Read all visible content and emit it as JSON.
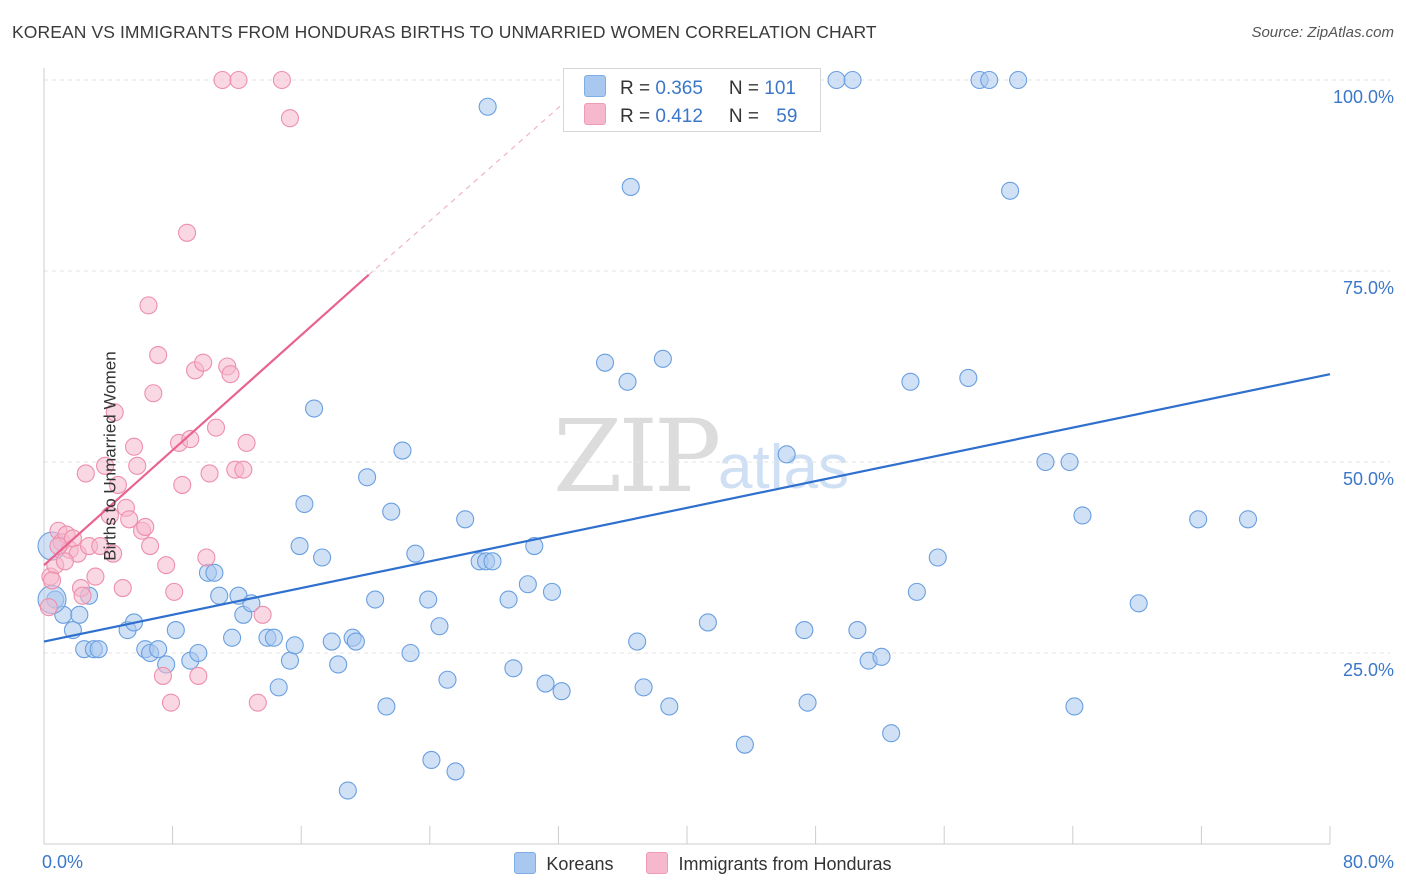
{
  "title": "KOREAN VS IMMIGRANTS FROM HONDURAS BIRTHS TO UNMARRIED WOMEN CORRELATION CHART",
  "source": "Source: ZipAtlas.com",
  "watermark_zip": "ZIP",
  "watermark_atlas": "atlas",
  "legend": {
    "rows": [
      {
        "r_label": "R = ",
        "r_value": "0.365",
        "n_label": "N = ",
        "n_value": "101",
        "color": "#a9c8ef"
      },
      {
        "r_label": "R = ",
        "r_value": "0.412",
        "n_label": "N = ",
        "n_value": "59",
        "color": "#f6b8cc"
      }
    ]
  },
  "bottom_legend": {
    "series_1": "Koreans",
    "series_2": "Immigrants from Honduras"
  },
  "chart_data": {
    "type": "scatter",
    "title": "KOREAN VS IMMIGRANTS FROM HONDURAS BIRTHS TO UNMARRIED WOMEN CORRELATION CHART",
    "xlabel": "",
    "ylabel": "Births to Unmarried Women",
    "xlim": [
      0,
      80
    ],
    "ylim": [
      0,
      100
    ],
    "x_tick_labels": [
      "0.0%",
      "80.0%"
    ],
    "y_tick_labels": [
      "25.0%",
      "50.0%",
      "75.0%",
      "100.0%"
    ],
    "y_ticks": [
      25,
      50,
      75,
      100
    ],
    "grid": true,
    "series": [
      {
        "name": "Koreans",
        "color": "#a9c8ef",
        "edge": "#6a9fe0",
        "trend": {
          "x": [
            0,
            80
          ],
          "y": [
            26.5,
            61.5
          ],
          "color": "#2f6fcd"
        },
        "points": [
          [
            0.5,
            39
          ],
          [
            0.7,
            32
          ],
          [
            1.2,
            30
          ],
          [
            1.8,
            28
          ],
          [
            2.2,
            30
          ],
          [
            2.5,
            25.5
          ],
          [
            2.8,
            32.5
          ],
          [
            3.1,
            25.5
          ],
          [
            3.4,
            25.5
          ],
          [
            5.2,
            28
          ],
          [
            5.6,
            29
          ],
          [
            6.3,
            25.5
          ],
          [
            6.6,
            25
          ],
          [
            7.1,
            25.5
          ],
          [
            7.6,
            23.5
          ],
          [
            8.2,
            28
          ],
          [
            9.1,
            24
          ],
          [
            9.6,
            25
          ],
          [
            10.2,
            35.5
          ],
          [
            10.6,
            35.5
          ],
          [
            10.9,
            32.5
          ],
          [
            11.7,
            27
          ],
          [
            12.1,
            32.5
          ],
          [
            12.4,
            30
          ],
          [
            12.9,
            31.5
          ],
          [
            13.9,
            27
          ],
          [
            14.3,
            27
          ],
          [
            14.6,
            20.5
          ],
          [
            15.3,
            24
          ],
          [
            15.6,
            26
          ],
          [
            15.9,
            39
          ],
          [
            16.2,
            44.5
          ],
          [
            16.8,
            57
          ],
          [
            17.3,
            37.5
          ],
          [
            17.9,
            26.5
          ],
          [
            18.3,
            23.5
          ],
          [
            18.9,
            7
          ],
          [
            19.2,
            27
          ],
          [
            19.4,
            26.5
          ],
          [
            20.1,
            48
          ],
          [
            20.6,
            32
          ],
          [
            21.3,
            18
          ],
          [
            21.6,
            43.5
          ],
          [
            22.3,
            51.5
          ],
          [
            22.8,
            25
          ],
          [
            23.1,
            38
          ],
          [
            23.9,
            32
          ],
          [
            24.1,
            11
          ],
          [
            24.6,
            28.5
          ],
          [
            25.1,
            21.5
          ],
          [
            25.6,
            9.5
          ],
          [
            26.2,
            42.5
          ],
          [
            27.1,
            37
          ],
          [
            27.5,
            37
          ],
          [
            27.6,
            96.5
          ],
          [
            27.9,
            37
          ],
          [
            28.9,
            32
          ],
          [
            29.2,
            23
          ],
          [
            30.1,
            34
          ],
          [
            30.5,
            39
          ],
          [
            31.2,
            21
          ],
          [
            31.6,
            33
          ],
          [
            32.2,
            20
          ],
          [
            33.2,
            100
          ],
          [
            33.5,
            100
          ],
          [
            34.9,
            63
          ],
          [
            36.3,
            60.5
          ],
          [
            36.5,
            86
          ],
          [
            36.9,
            26.5
          ],
          [
            37.3,
            20.5
          ],
          [
            38.5,
            63.5
          ],
          [
            38.9,
            18
          ],
          [
            40.3,
            100
          ],
          [
            40.4,
            100
          ],
          [
            41.3,
            29
          ],
          [
            43.6,
            13
          ],
          [
            46.2,
            51
          ],
          [
            47.3,
            28
          ],
          [
            47.5,
            18.5
          ],
          [
            49.3,
            100
          ],
          [
            50.3,
            100
          ],
          [
            50.6,
            28
          ],
          [
            51.3,
            24
          ],
          [
            52.1,
            24.5
          ],
          [
            52.7,
            14.5
          ],
          [
            53.9,
            60.5
          ],
          [
            54.3,
            33
          ],
          [
            55.6,
            37.5
          ],
          [
            57.5,
            61
          ],
          [
            58.2,
            100
          ],
          [
            58.8,
            100
          ],
          [
            60.1,
            85.5
          ],
          [
            60.6,
            100
          ],
          [
            62.3,
            50
          ],
          [
            63.8,
            50
          ],
          [
            64.1,
            18
          ],
          [
            64.6,
            43
          ],
          [
            68.1,
            31.5
          ],
          [
            71.8,
            42.5
          ],
          [
            74.9,
            42.5
          ],
          [
            0.5,
            32
          ]
        ]
      },
      {
        "name": "Immigrants from Honduras",
        "color": "#f6b8cc",
        "edge": "#ee8fac",
        "trend": {
          "x": [
            0,
            20.2
          ],
          "y": [
            36.5,
            74.5
          ],
          "dash_to_x": 34.5,
          "dash_to_y": 101,
          "color": "#e8638f"
        },
        "points": [
          [
            0.3,
            31
          ],
          [
            0.4,
            35
          ],
          [
            0.7,
            36.5
          ],
          [
            0.9,
            41
          ],
          [
            1.1,
            39.5
          ],
          [
            1.4,
            40.5
          ],
          [
            1.6,
            38.5
          ],
          [
            1.8,
            40
          ],
          [
            2.1,
            38
          ],
          [
            2.3,
            33.5
          ],
          [
            2.4,
            32.5
          ],
          [
            2.6,
            48.5
          ],
          [
            2.8,
            39
          ],
          [
            3.2,
            35
          ],
          [
            3.5,
            39
          ],
          [
            3.8,
            49.5
          ],
          [
            4.1,
            43
          ],
          [
            4.3,
            38
          ],
          [
            4.4,
            56.5
          ],
          [
            4.6,
            47
          ],
          [
            4.9,
            33.5
          ],
          [
            5.1,
            44
          ],
          [
            5.3,
            42.5
          ],
          [
            5.6,
            52
          ],
          [
            5.8,
            49.5
          ],
          [
            6.1,
            41
          ],
          [
            6.3,
            41.5
          ],
          [
            6.5,
            70.5
          ],
          [
            6.6,
            39
          ],
          [
            6.8,
            59
          ],
          [
            7.1,
            64
          ],
          [
            7.4,
            22
          ],
          [
            7.6,
            36.5
          ],
          [
            7.9,
            18.5
          ],
          [
            8.1,
            33
          ],
          [
            8.4,
            52.5
          ],
          [
            8.6,
            47
          ],
          [
            8.9,
            80
          ],
          [
            9.1,
            53
          ],
          [
            9.4,
            62
          ],
          [
            9.6,
            22
          ],
          [
            9.9,
            63
          ],
          [
            10.1,
            37.5
          ],
          [
            10.3,
            48.5
          ],
          [
            10.7,
            54.5
          ],
          [
            11.1,
            100
          ],
          [
            11.4,
            62.5
          ],
          [
            11.6,
            61.5
          ],
          [
            11.9,
            49
          ],
          [
            12.1,
            100
          ],
          [
            12.4,
            49
          ],
          [
            12.6,
            52.5
          ],
          [
            13.3,
            18.5
          ],
          [
            13.6,
            30
          ],
          [
            14.8,
            100
          ],
          [
            15.3,
            95
          ],
          [
            0.5,
            34.5
          ],
          [
            0.9,
            39
          ],
          [
            1.3,
            37
          ]
        ]
      }
    ]
  }
}
